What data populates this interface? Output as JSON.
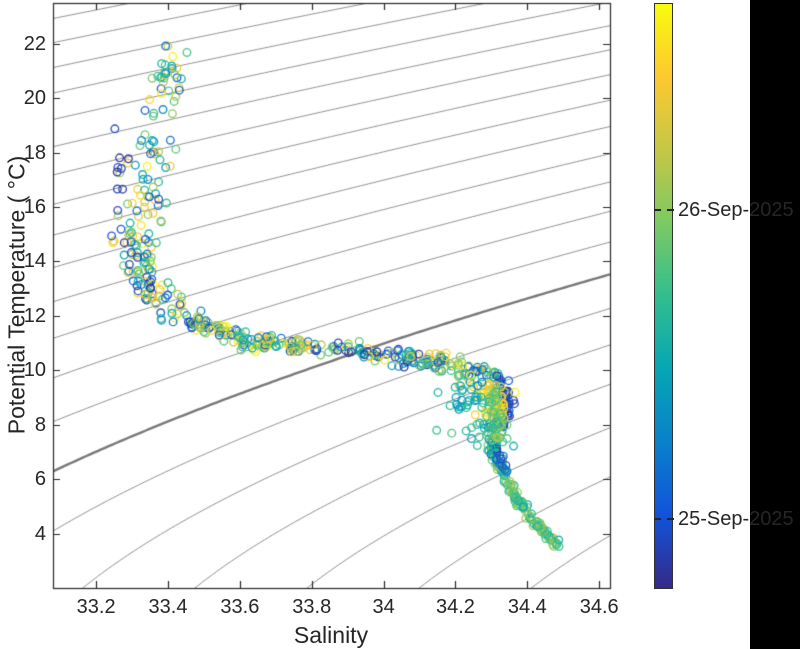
{
  "figure": {
    "background": "#ffffff",
    "right_band_color": "#000000",
    "axis_color": "#262626",
    "text_color": "#262626"
  },
  "chart_data": {
    "type": "scatter",
    "title": "",
    "xlabel": "Salinity",
    "ylabel": "Potential Temperature ( °C)",
    "xlim": [
      33.08,
      34.63
    ],
    "ylim": [
      2,
      23.5
    ],
    "xticks": [
      33.2,
      33.4,
      33.6,
      33.8,
      34,
      34.2,
      34.4,
      34.6
    ],
    "xtick_labels": [
      "33.2",
      "33.4",
      "33.6",
      "33.8",
      "34",
      "34.2",
      "34.4",
      "34.6"
    ],
    "yticks": [
      4,
      6,
      8,
      10,
      12,
      14,
      16,
      18,
      20,
      22
    ],
    "ytick_labels": [
      "4",
      "6",
      "8",
      "10",
      "12",
      "14",
      "16",
      "18",
      "20",
      "22"
    ],
    "grid": false,
    "box": true,
    "tick_dir": "in",
    "legend": "none",
    "contours": {
      "kind": "isopycnals-sigma-theta",
      "level_start": 22.25,
      "level_end": 27.5,
      "level_step": 0.25,
      "thick_level": 26.0,
      "color": "#909090",
      "thick_color": "#787878"
    },
    "colorbar": {
      "position": "right",
      "colormap": "parula",
      "stops": [
        [
          0.0,
          "#352a87"
        ],
        [
          0.125,
          "#1153db"
        ],
        [
          0.25,
          "#0881ca"
        ],
        [
          0.375,
          "#06a6b4"
        ],
        [
          0.5,
          "#31be8e"
        ],
        [
          0.625,
          "#7cc963"
        ],
        [
          0.75,
          "#c5c744"
        ],
        [
          0.875,
          "#fdc830"
        ],
        [
          1.0,
          "#f9fb0e"
        ]
      ],
      "tick_labels": [
        {
          "label": "26-Sep-2025",
          "frac_from_top": 0.354
        },
        {
          "label": "25-Sep-2025",
          "frac_from_top": 0.88
        }
      ],
      "meaning": "sample date-time"
    },
    "scatter": {
      "marker": "o",
      "marker_radius_px": 3.8,
      "stroke_px": 1.35,
      "alpha": 0.92,
      "seed": 7,
      "color_by": "time (parula colorbar)",
      "segments": [
        {
          "name": "deep-spine",
          "n": 170,
          "path": [
            [
              34.305,
              7.4
            ],
            [
              34.31,
              6.93
            ],
            [
              34.335,
              6.2
            ],
            [
              34.36,
              5.45
            ],
            [
              34.405,
              4.7
            ],
            [
              34.44,
              4.1
            ],
            [
              34.49,
              3.55
            ]
          ],
          "jitter_s": 0.006,
          "jitter_t": 0.07,
          "time": [
            0.35,
            0.72
          ]
        },
        {
          "name": "deep-spine-blue",
          "n": 16,
          "path": [
            [
              34.3,
              7.5
            ],
            [
              34.32,
              6.9
            ],
            [
              34.345,
              6.15
            ]
          ],
          "jitter_s": 0.008,
          "jitter_t": 0.12,
          "time": [
            0.04,
            0.22
          ]
        },
        {
          "name": "knee-blue-edge",
          "n": 60,
          "path": [
            [
              34.33,
              9.65
            ],
            [
              34.338,
              9.1
            ],
            [
              34.338,
              8.5
            ],
            [
              34.325,
              7.9
            ]
          ],
          "jitter_s": 0.011,
          "jitter_t": 0.12,
          "time": [
            0.02,
            0.18
          ]
        },
        {
          "name": "knee-yellow",
          "n": 65,
          "path": [
            [
              34.275,
              9.6
            ],
            [
              34.3,
              9.15
            ],
            [
              34.31,
              8.6
            ],
            [
              34.315,
              8.1
            ]
          ],
          "jitter_s": 0.02,
          "jitter_t": 0.14,
          "time": [
            0.78,
            1.0
          ]
        },
        {
          "name": "knee-teal",
          "n": 55,
          "path": [
            [
              34.235,
              9.4
            ],
            [
              34.225,
              8.85
            ],
            [
              34.25,
              8.2
            ],
            [
              34.275,
              7.65
            ],
            [
              34.3,
              7.45
            ]
          ],
          "jitter_s": 0.033,
          "jitter_t": 0.2,
          "time": [
            0.28,
            0.55
          ]
        },
        {
          "name": "knee-funnel",
          "n": 45,
          "path": [
            [
              34.305,
              9.3
            ],
            [
              34.315,
              8.6
            ],
            [
              34.32,
              7.95
            ],
            [
              34.315,
              7.5
            ]
          ],
          "jitter_s": 0.012,
          "jitter_t": 0.12,
          "time": [
            0.45,
            0.72
          ]
        },
        {
          "name": "main-band",
          "n": 300,
          "path": [
            [
              34.3,
              9.78
            ],
            [
              34.24,
              10.0
            ],
            [
              34.16,
              10.25
            ],
            [
              34.08,
              10.42
            ],
            [
              34.0,
              10.56
            ],
            [
              33.9,
              10.72
            ],
            [
              33.8,
              10.87
            ],
            [
              33.7,
              11.0
            ],
            [
              33.62,
              11.1
            ],
            [
              33.55,
              11.32
            ],
            [
              33.5,
              11.6
            ],
            [
              33.45,
              11.95
            ]
          ],
          "jitter_s": 0.018,
          "jitter_t": 0.16,
          "time": [
            0,
            1
          ]
        },
        {
          "name": "limb-lower",
          "n": 95,
          "path": [
            [
              33.43,
              12.15
            ],
            [
              33.37,
              12.8
            ],
            [
              33.33,
              13.4
            ],
            [
              33.31,
              14.0
            ],
            [
              33.33,
              14.6
            ],
            [
              33.3,
              15.2
            ]
          ],
          "jitter_s": 0.033,
          "jitter_t": 0.2,
          "time": [
            0,
            1
          ]
        },
        {
          "name": "limb-mid",
          "n": 48,
          "path": [
            [
              33.32,
              15.6
            ],
            [
              33.35,
              16.2
            ],
            [
              33.32,
              16.8
            ],
            [
              33.34,
              17.4
            ],
            [
              33.36,
              18.0
            ],
            [
              33.37,
              18.6
            ]
          ],
          "jitter_s": 0.038,
          "jitter_t": 0.22,
          "time": [
            0.05,
            1
          ]
        },
        {
          "name": "limb-purple-edge",
          "n": 9,
          "path": [
            [
              33.25,
              15.4
            ],
            [
              33.26,
              16.5
            ],
            [
              33.27,
              17.5
            ],
            [
              33.285,
              18.4
            ]
          ],
          "jitter_s": 0.013,
          "jitter_t": 0.35,
          "time": [
            0.0,
            0.1
          ]
        },
        {
          "name": "limb-upper",
          "n": 34,
          "path": [
            [
              33.38,
              19.15
            ],
            [
              33.4,
              19.75
            ],
            [
              33.41,
              20.35
            ],
            [
              33.4,
              20.9
            ],
            [
              33.42,
              21.4
            ],
            [
              33.43,
              21.75
            ]
          ],
          "jitter_s": 0.027,
          "jitter_t": 0.2,
          "time": [
            0.1,
            1
          ]
        }
      ]
    }
  }
}
